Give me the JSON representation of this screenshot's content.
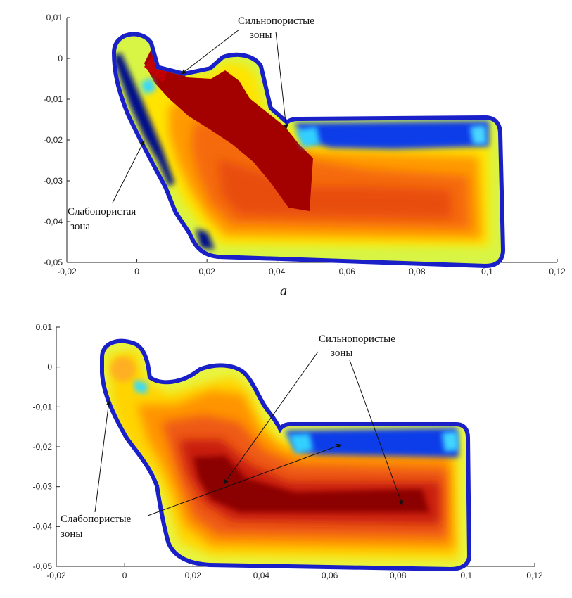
{
  "chart_data": [
    {
      "type": "heatmap",
      "panel_label": "a",
      "xlim": [
        -0.02,
        0.12
      ],
      "ylim": [
        -0.05,
        0.01
      ],
      "xticks": [
        "-0,02",
        "0",
        "0,02",
        "0,04",
        "0,06",
        "0,08",
        "0,1",
        "0,12"
      ],
      "yticks": [
        "0,01",
        "0",
        "-0,01",
        "-0,02",
        "-0,03",
        "-0,04",
        "-0,05"
      ],
      "annotations": {
        "strong_line1": "Сильнопористые",
        "strong_line2": "зоны",
        "weak_line1": "Слабопористая",
        "weak_line2": "зона"
      },
      "colormap": [
        "#00008b",
        "#0050ff",
        "#00e5e5",
        "#e6ff40",
        "#ffd400",
        "#ff8a00",
        "#e03a10",
        "#9b0000"
      ]
    },
    {
      "type": "heatmap",
      "panel_label": "",
      "xlim": [
        -0.02,
        0.12
      ],
      "ylim": [
        -0.05,
        0.01
      ],
      "xticks": [
        "-0,02",
        "0",
        "0,02",
        "0,04",
        "0,06",
        "0,08",
        "0,1",
        "0,12"
      ],
      "yticks": [
        "0,01",
        "0",
        "-0,01",
        "-0,02",
        "-0,03",
        "-0,04",
        "-0,05"
      ],
      "annotations": {
        "strong_line1": "Сильнопористые",
        "strong_line2": "зоны",
        "weak_line1": "Слабопористые",
        "weak_line2": "зоны"
      },
      "colormap": [
        "#00008b",
        "#0050ff",
        "#00e5e5",
        "#e6ff40",
        "#ffd400",
        "#ff8a00",
        "#e03a10",
        "#9b0000"
      ]
    }
  ]
}
